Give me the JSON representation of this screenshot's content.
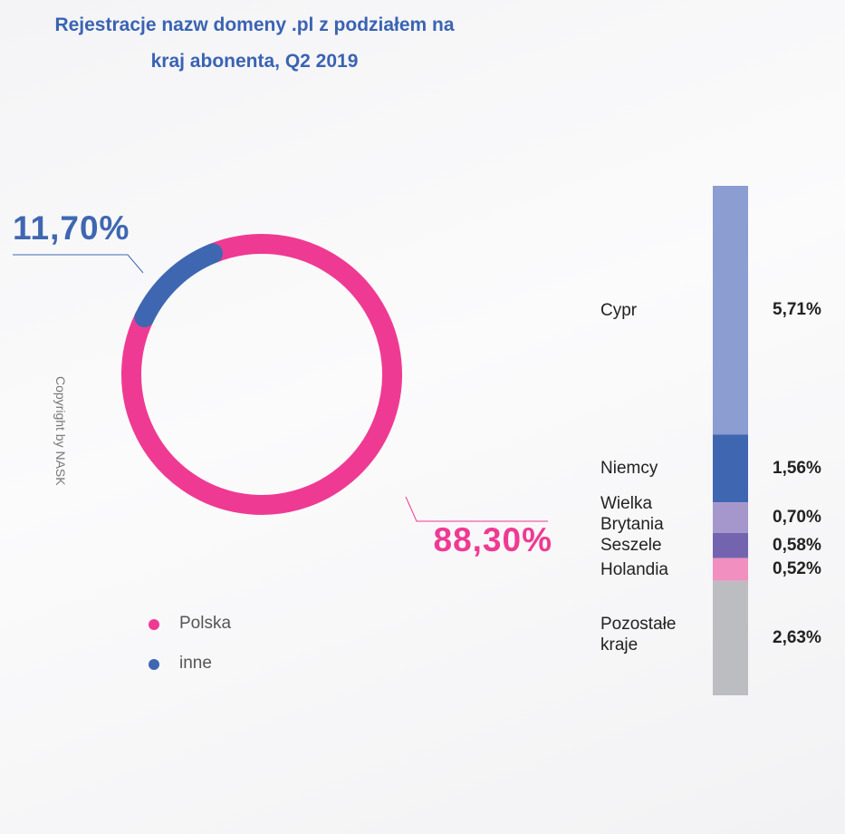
{
  "title": "Rejestracje nazw domeny .pl z podziałem na kraj abonenta, Q2 2019",
  "copyright": "Copyright by NASK",
  "chart_data": [
    {
      "type": "donut",
      "categories": [
        "Polska",
        "inne"
      ],
      "values": [
        88.3,
        11.7
      ],
      "value_labels": [
        "88,30%",
        "11,70%"
      ],
      "colors": [
        "#ef3a93",
        "#3f67b1"
      ]
    },
    {
      "type": "stacked_bar",
      "categories": [
        "Cypr",
        "Niemcy",
        "Wielka Brytania",
        "Seszele",
        "Holandia",
        "Pozostałe kraje"
      ],
      "values": [
        5.71,
        1.56,
        0.7,
        0.58,
        0.52,
        2.63
      ],
      "value_labels": [
        "5,71%",
        "1,56%",
        "0,70%",
        "0,58%",
        "0,52%",
        "2,63%"
      ],
      "colors": [
        "#8b9dd1",
        "#3f67b1",
        "#a597cc",
        "#7464b0",
        "#f08fc0",
        "#bcbdc0"
      ]
    }
  ]
}
